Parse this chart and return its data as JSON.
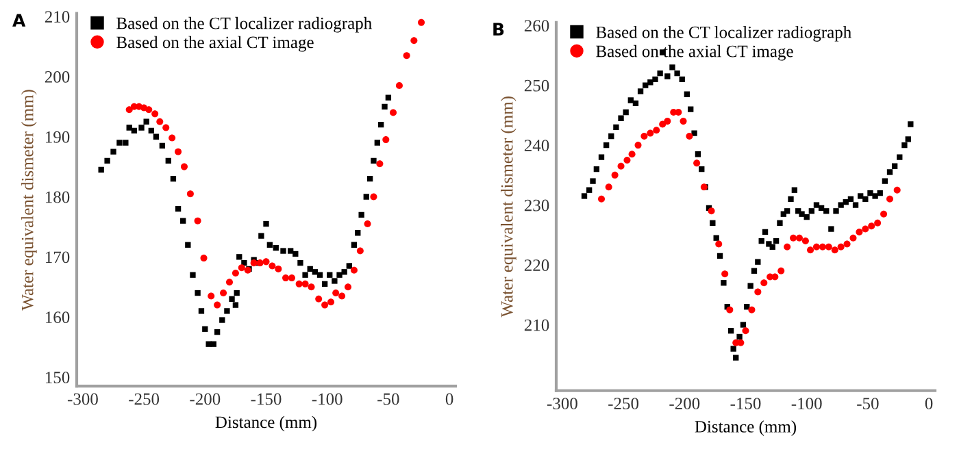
{
  "chart_data": [
    {
      "type": "scatter",
      "title": "A",
      "xlabel": "Distance (mm)",
      "ylabel": "Water equivalent dismeter (mm)",
      "xlim": [
        -305,
        5
      ],
      "xticks": [
        -300,
        -250,
        -200,
        -150,
        -100,
        -50,
        0
      ],
      "ylim": [
        148.5,
        210.5
      ],
      "yticks": [
        150,
        160,
        170,
        180,
        190,
        200,
        210
      ],
      "grid": false,
      "legend": "top left",
      "series": [
        {
          "name": "Based on the CT localizer radiograph",
          "color": "#000000",
          "marker": "square",
          "x": [
            -285,
            -280,
            -275,
            -270,
            -265,
            -262,
            -258,
            -252,
            -248,
            -244,
            -240,
            -235,
            -230,
            -226,
            -222,
            -218,
            -214,
            -210,
            -206,
            -203,
            -200,
            -197,
            -193,
            -190,
            -186,
            -182,
            -178,
            -175,
            -174,
            -172,
            -168,
            -164,
            -160,
            -156,
            -154,
            -150,
            -147,
            -142,
            -136,
            -130,
            -126,
            -122,
            -118,
            -114,
            -110,
            -106,
            -102,
            -98,
            -94,
            -90,
            -86,
            -82,
            -78,
            -75,
            -72,
            -68,
            -65,
            -62,
            -59,
            -56,
            -53,
            -50
          ],
          "values": [
            184.5,
            186,
            187.5,
            189,
            189,
            191.5,
            191,
            191.5,
            192.5,
            191,
            190,
            188.5,
            186,
            183,
            178,
            176,
            172,
            167,
            164,
            161,
            158,
            155.5,
            155.5,
            157.5,
            159.5,
            161,
            163,
            162,
            164,
            170,
            169,
            168,
            169.5,
            169,
            173.5,
            175.5,
            172,
            171.5,
            171,
            171,
            170.5,
            169,
            167,
            168,
            167.5,
            167,
            165.5,
            167,
            166,
            167,
            167.5,
            168.5,
            172,
            174,
            177,
            180,
            183,
            186,
            189,
            192,
            195,
            196.5
          ]
        },
        {
          "name": "Based on the axial CT image",
          "color": "#ff0000",
          "marker": "circle",
          "x": [
            -262,
            -258,
            -254,
            -250,
            -246,
            -241,
            -237,
            -232,
            -227,
            -222,
            -217,
            -212,
            -206,
            -201,
            -195,
            -190,
            -185,
            -180,
            -175,
            -170,
            -165,
            -160,
            -155,
            -150,
            -145,
            -140,
            -134,
            -129,
            -123,
            -118,
            -113,
            -107,
            -102,
            -97,
            -93,
            -88,
            -83,
            -78,
            -73,
            -67,
            -62,
            -57,
            -52,
            -46,
            -41,
            -35,
            -29,
            -23
          ],
          "values": [
            194.5,
            195,
            195,
            194.8,
            194.5,
            193.8,
            192.5,
            191.5,
            189.8,
            187.5,
            185,
            180.5,
            176,
            169.8,
            163.5,
            162,
            164,
            165.8,
            167.3,
            168.2,
            167.8,
            169,
            169,
            169.2,
            168.5,
            168,
            166.5,
            166.5,
            165.5,
            165.5,
            165,
            163,
            162,
            162.5,
            164,
            163.5,
            165,
            167.8,
            171,
            175.5,
            180,
            185.5,
            189.5,
            194,
            198.5,
            203.5,
            206,
            209
          ]
        }
      ]
    },
    {
      "type": "scatter",
      "title": "B",
      "xlabel": "Distance (mm)",
      "ylabel": "Water equivalent dismeter (mm)",
      "xlim": [
        -305,
        5
      ],
      "xticks": [
        -300,
        -250,
        -200,
        -150,
        -100,
        -50,
        0
      ],
      "ylim": [
        199,
        260.5
      ],
      "yticks": [
        210,
        220,
        230,
        240,
        250,
        260
      ],
      "grid": false,
      "legend": "top left",
      "series": [
        {
          "name": "Based on the CT localizer radiograph",
          "color": "#000000",
          "marker": "square",
          "x": [
            -282,
            -278,
            -275,
            -272,
            -268,
            -264,
            -260,
            -256,
            -252,
            -248,
            -244,
            -240,
            -236,
            -232,
            -228,
            -224,
            -220,
            -218,
            -214,
            -210,
            -206,
            -202,
            -198,
            -195,
            -192,
            -189,
            -186,
            -183,
            -180,
            -177,
            -174,
            -171,
            -168,
            -165,
            -162,
            -160,
            -158,
            -155,
            -152,
            -149,
            -146,
            -143,
            -140,
            -137,
            -134,
            -131,
            -128,
            -125,
            -122,
            -119,
            -116,
            -113,
            -110,
            -107,
            -104,
            -100,
            -96,
            -92,
            -88,
            -84,
            -80,
            -76,
            -72,
            -68,
            -64,
            -60,
            -56,
            -52,
            -48,
            -44,
            -40,
            -36,
            -32,
            -28,
            -24,
            -20,
            -17,
            -15
          ],
          "values": [
            231.5,
            232.5,
            234,
            236,
            238,
            240,
            241.5,
            243,
            244.5,
            245.5,
            247.5,
            247,
            249,
            250,
            250.5,
            251,
            252,
            255.5,
            251.5,
            253,
            252,
            251,
            248.5,
            246,
            242,
            238.5,
            236,
            233,
            229.5,
            227,
            224.5,
            221.5,
            217,
            213,
            209,
            206,
            204.5,
            208,
            210,
            213,
            216.5,
            219,
            220.5,
            224,
            225.5,
            223.5,
            223,
            224,
            227,
            228.5,
            229,
            231,
            232.5,
            229,
            228.5,
            228,
            229,
            230,
            229.5,
            229,
            226,
            229,
            230,
            230.5,
            231,
            230,
            231.5,
            231,
            232,
            231.5,
            232,
            234,
            235.5,
            236.5,
            238,
            240,
            241,
            243.5
          ]
        },
        {
          "name": "Based on the axial CT image",
          "color": "#ff0000",
          "marker": "circle",
          "x": [
            -268,
            -262,
            -257,
            -252,
            -247,
            -243,
            -238,
            -233,
            -228,
            -223,
            -218,
            -214,
            -209,
            -205,
            -201,
            -196,
            -190,
            -184,
            -178,
            -172,
            -167,
            -163,
            -158,
            -154,
            -150,
            -145,
            -140,
            -135,
            -130,
            -126,
            -121,
            -116,
            -111,
            -106,
            -101,
            -97,
            -92,
            -87,
            -82,
            -77,
            -72,
            -67,
            -62,
            -57,
            -52,
            -47,
            -42,
            -37,
            -32,
            -26
          ],
          "values": [
            231,
            233,
            235,
            236.5,
            237.5,
            238.5,
            240,
            241.5,
            242,
            242.5,
            243.5,
            244,
            245.5,
            245.5,
            244,
            241.5,
            237,
            233,
            229,
            223.5,
            218.5,
            212.5,
            207,
            207,
            209,
            212.5,
            215.5,
            217,
            218,
            218,
            219,
            223,
            224.5,
            224.5,
            224,
            222.5,
            223,
            223,
            223,
            222.5,
            223,
            223.5,
            224.5,
            225.5,
            226,
            226.5,
            227,
            228.5,
            231,
            232.5
          ]
        }
      ]
    }
  ]
}
